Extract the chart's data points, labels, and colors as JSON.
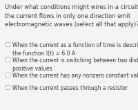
{
  "question": "Under what conditions might wires in a circuit where\nthe current flows in only one direction emit\nelectromagnetic waves (select all that apply)?",
  "options": [
    "When the current as a function of time is described by\nthe function I(t) = 6.0 A",
    "When the current is switching between two distinct\npositive values",
    "When the current has any nonzero constant value",
    "When the current passes through a resistor"
  ],
  "bg_color": "#f5f4f2",
  "text_color": "#3a3a3a",
  "checkbox_color": "#ffffff",
  "checkbox_edge_color": "#b0b0b0",
  "question_fontsize": 6.0,
  "option_fontsize": 5.5
}
